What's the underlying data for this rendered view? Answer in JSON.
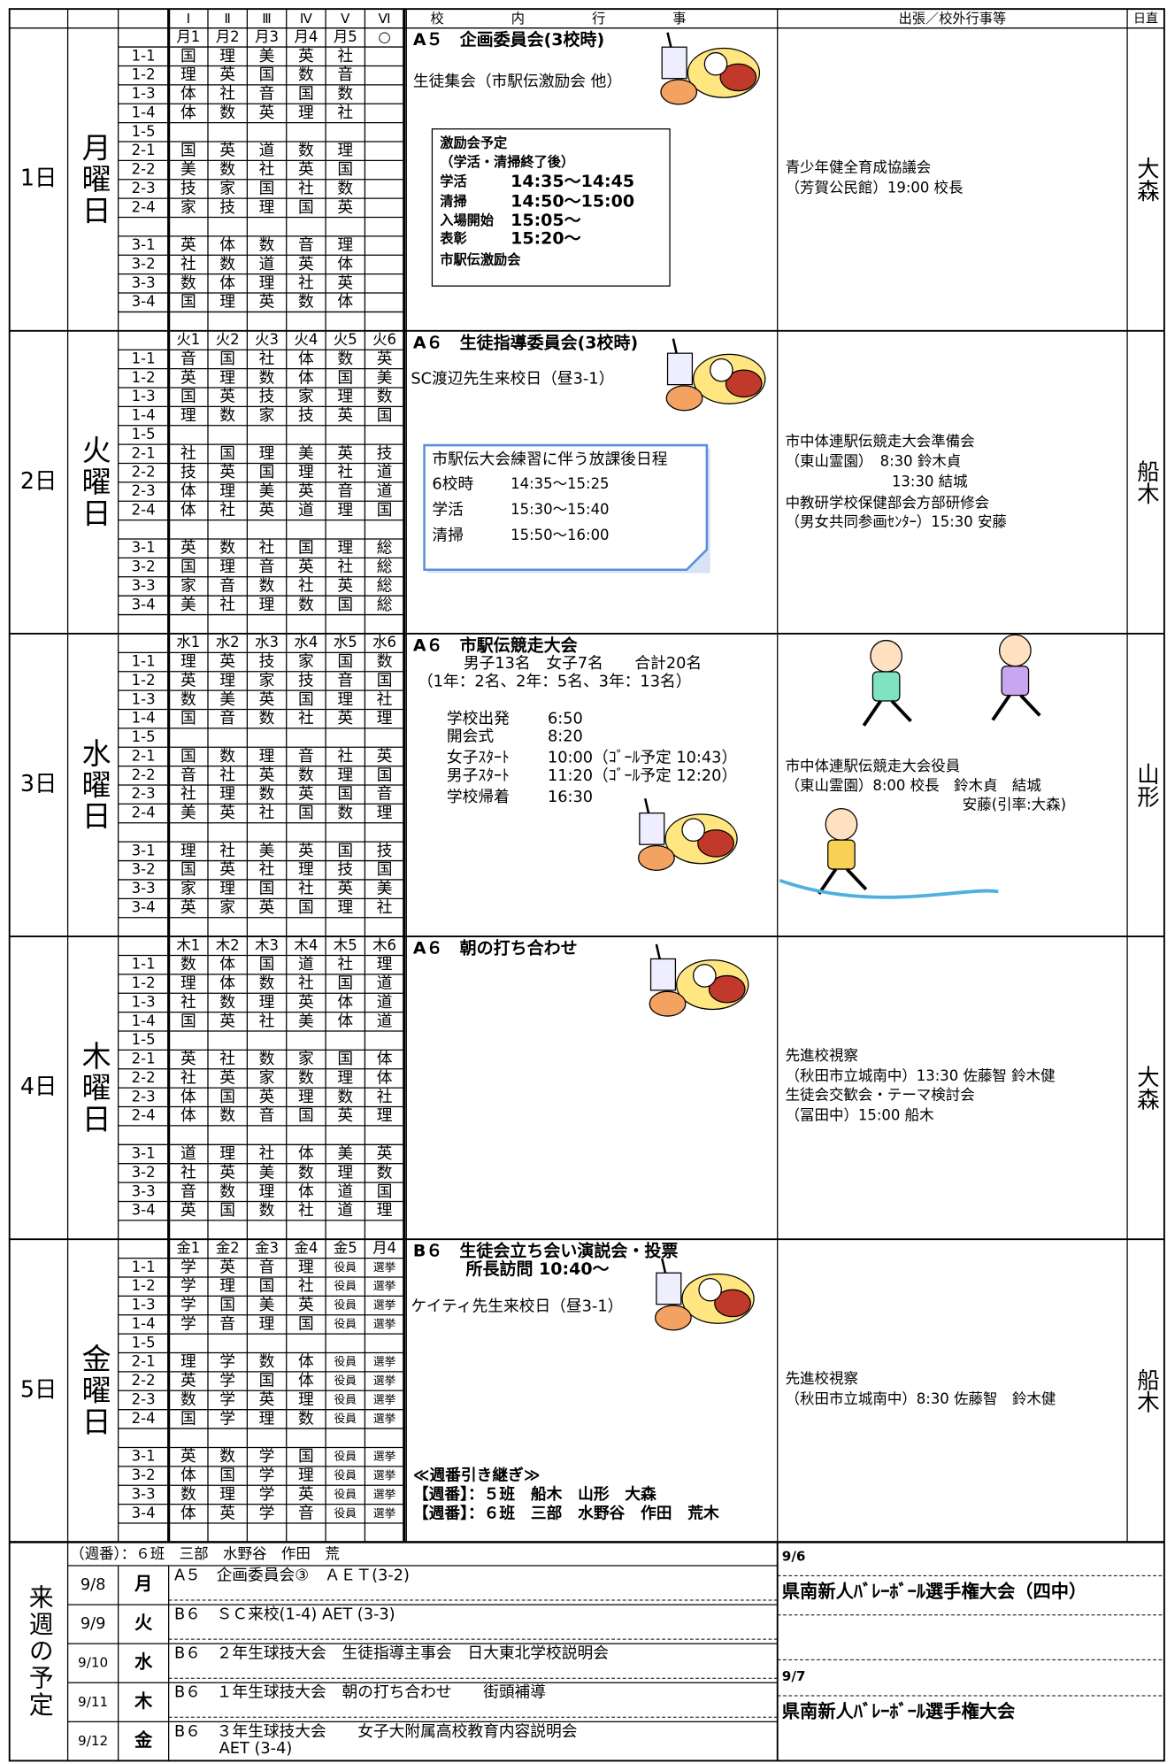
{
  "header": {
    "periods": [
      "Ⅰ",
      "Ⅱ",
      "Ⅲ",
      "Ⅳ",
      "Ⅴ",
      "Ⅵ"
    ],
    "events": "校内行事",
    "outside": "出張／校外行事等",
    "duty": "日直"
  },
  "classes": [
    "1-1",
    "1-2",
    "1-3",
    "1-4",
    "1-5",
    "2-1",
    "2-2",
    "2-3",
    "2-4",
    "3-1",
    "3-2",
    "3-3",
    "3-4"
  ],
  "days": [
    {
      "date": "1日",
      "weekday": "月曜日",
      "duty": "大森",
      "periods": [
        "月1",
        "月2",
        "月3",
        "月4",
        "月5",
        "○"
      ],
      "timetable": [
        [
          "国",
          "理",
          "美",
          "英",
          "社"
        ],
        [
          "理",
          "英",
          "国",
          "数",
          "音"
        ],
        [
          "体",
          "社",
          "音",
          "国",
          "数"
        ],
        [
          "体",
          "数",
          "英",
          "理",
          "社"
        ],
        [],
        [
          "国",
          "英",
          "道",
          "数",
          "理"
        ],
        [
          "美",
          "数",
          "社",
          "英",
          "国"
        ],
        [
          "技",
          "家",
          "国",
          "社",
          "数"
        ],
        [
          "家",
          "技",
          "理",
          "国",
          "英"
        ],
        [
          "英",
          "体",
          "数",
          "音",
          "理"
        ],
        [
          "社",
          "数",
          "道",
          "英",
          "体"
        ],
        [
          "数",
          "体",
          "理",
          "社",
          "英"
        ],
        [
          "国",
          "理",
          "英",
          "数",
          "体"
        ]
      ],
      "events": {
        "title": "A５　企画委員会(3校時)",
        "lines": [
          "生徒集会（市駅伝激励会 他）"
        ],
        "box": [
          [
            "激励会予定"
          ],
          [
            "（学活・清掃終了後）"
          ],
          [
            "学活",
            "14:35～14:45"
          ],
          [
            "清掃",
            "14:50～15:00"
          ],
          [
            "入場開始",
            "15:05～"
          ],
          [
            "表彰",
            "15:20～"
          ],
          [
            "市駅伝激励会"
          ]
        ]
      },
      "outside": [
        "青少年健全育成協議会",
        "（芳賀公民館）19:00 校長"
      ]
    },
    {
      "date": "2日",
      "weekday": "火曜日",
      "duty": "船木",
      "periods": [
        "火1",
        "火2",
        "火3",
        "火4",
        "火5",
        "火6"
      ],
      "timetable": [
        [
          "音",
          "国",
          "社",
          "体",
          "数",
          "英"
        ],
        [
          "英",
          "理",
          "数",
          "体",
          "国",
          "美"
        ],
        [
          "国",
          "英",
          "技",
          "家",
          "理",
          "数"
        ],
        [
          "理",
          "数",
          "家",
          "技",
          "英",
          "国"
        ],
        [],
        [
          "社",
          "国",
          "理",
          "美",
          "英",
          "技"
        ],
        [
          "技",
          "英",
          "国",
          "理",
          "社",
          "道"
        ],
        [
          "体",
          "理",
          "美",
          "英",
          "音",
          "道"
        ],
        [
          "体",
          "社",
          "英",
          "道",
          "理",
          "国"
        ],
        [
          "英",
          "数",
          "社",
          "国",
          "理",
          "総"
        ],
        [
          "国",
          "理",
          "音",
          "英",
          "社",
          "総"
        ],
        [
          "家",
          "音",
          "数",
          "社",
          "英",
          "総"
        ],
        [
          "美",
          "社",
          "理",
          "数",
          "国",
          "総"
        ]
      ],
      "events": {
        "title": "A６　生徒指導委員会(3校時)",
        "lines": [
          "SC渡辺先生来校日（昼3-1）"
        ],
        "box": [
          [
            "市駅伝大会練習に伴う放課後日程"
          ],
          [
            "6校時",
            "14:35～15:25"
          ],
          [
            "学活",
            "15:30～15:40"
          ],
          [
            "清掃",
            "15:50～16:00"
          ]
        ]
      },
      "outside": [
        "市中体連駅伝競走大会準備会",
        "（東山霊園）　8:30 鈴木貞",
        "13:30 結城",
        "中教研学校保健部会方部研修会",
        "（男女共同参画ｾﾝﾀｰ）15:30 安藤"
      ]
    },
    {
      "date": "3日",
      "weekday": "水曜日",
      "duty": "山形",
      "periods": [
        "水1",
        "水2",
        "水3",
        "水4",
        "水5",
        "水6"
      ],
      "timetable": [
        [
          "理",
          "英",
          "技",
          "家",
          "国",
          "数"
        ],
        [
          "英",
          "理",
          "家",
          "技",
          "音",
          "国"
        ],
        [
          "数",
          "美",
          "英",
          "国",
          "理",
          "社"
        ],
        [
          "国",
          "音",
          "数",
          "社",
          "英",
          "理"
        ],
        [],
        [
          "国",
          "数",
          "理",
          "音",
          "社",
          "英"
        ],
        [
          "音",
          "社",
          "英",
          "数",
          "理",
          "国"
        ],
        [
          "社",
          "理",
          "数",
          "英",
          "国",
          "音"
        ],
        [
          "美",
          "英",
          "社",
          "国",
          "数",
          "理"
        ],
        [
          "理",
          "社",
          "美",
          "英",
          "国",
          "技"
        ],
        [
          "国",
          "英",
          "社",
          "理",
          "技",
          "国"
        ],
        [
          "家",
          "理",
          "国",
          "社",
          "英",
          "美"
        ],
        [
          "英",
          "家",
          "英",
          "国",
          "理",
          "社"
        ]
      ],
      "events": {
        "title": "A６　市駅伝競走大会",
        "lines": [
          "男子13名　女子7名　　合計20名",
          "（1年：2名、2年：5名、3年：13名）"
        ],
        "schedule": [
          [
            "学校出発",
            "6:50"
          ],
          [
            "開会式",
            "8:20"
          ],
          [
            "女子ｽﾀｰﾄ",
            "10:00（ｺﾞｰﾙ予定 10:43）"
          ],
          [
            "男子ｽﾀｰﾄ",
            "11:20（ｺﾞｰﾙ予定 12:20）"
          ],
          [
            "学校帰着",
            "16:30"
          ]
        ]
      },
      "outside": [
        "市中体連駅伝競走大会役員",
        "（東山霊園）8:00 校長　鈴木貞　結城",
        "安藤(引率:大森)"
      ]
    },
    {
      "date": "4日",
      "weekday": "木曜日",
      "duty": "大森",
      "periods": [
        "木1",
        "木2",
        "木3",
        "木4",
        "木5",
        "木6"
      ],
      "timetable": [
        [
          "数",
          "体",
          "国",
          "道",
          "社",
          "理"
        ],
        [
          "理",
          "体",
          "数",
          "社",
          "国",
          "道"
        ],
        [
          "社",
          "数",
          "理",
          "英",
          "体",
          "道"
        ],
        [
          "国",
          "英",
          "社",
          "美",
          "体",
          "道"
        ],
        [],
        [
          "英",
          "社",
          "数",
          "家",
          "国",
          "体"
        ],
        [
          "社",
          "英",
          "家",
          "数",
          "理",
          "体"
        ],
        [
          "体",
          "国",
          "英",
          "理",
          "数",
          "社"
        ],
        [
          "体",
          "数",
          "音",
          "国",
          "英",
          "理"
        ],
        [
          "道",
          "理",
          "社",
          "体",
          "美",
          "英"
        ],
        [
          "社",
          "英",
          "美",
          "数",
          "理",
          "数"
        ],
        [
          "音",
          "数",
          "理",
          "体",
          "道",
          "国"
        ],
        [
          "英",
          "国",
          "数",
          "社",
          "道",
          "理"
        ]
      ],
      "events": {
        "title": "A６　朝の打ち合わせ",
        "lines": []
      },
      "outside": [
        "先進校視察",
        "（秋田市立城南中）13:30 佐藤智 鈴木健",
        "生徒会交歓会・テーマ検討会",
        "（冨田中）15:00 船木"
      ]
    },
    {
      "date": "5日",
      "weekday": "金曜日",
      "duty": "船木",
      "periods": [
        "金1",
        "金2",
        "金3",
        "金4",
        "金5",
        "月4"
      ],
      "timetable": [
        [
          "学",
          "英",
          "音",
          "理",
          "役員",
          "選挙"
        ],
        [
          "学",
          "理",
          "国",
          "社",
          "役員",
          "選挙"
        ],
        [
          "学",
          "国",
          "美",
          "英",
          "役員",
          "選挙"
        ],
        [
          "学",
          "音",
          "理",
          "国",
          "役員",
          "選挙"
        ],
        [],
        [
          "理",
          "学",
          "数",
          "体",
          "役員",
          "選挙"
        ],
        [
          "英",
          "学",
          "国",
          "体",
          "役員",
          "選挙"
        ],
        [
          "数",
          "学",
          "英",
          "理",
          "役員",
          "選挙"
        ],
        [
          "国",
          "学",
          "理",
          "数",
          "役員",
          "選挙"
        ],
        [
          "英",
          "数",
          "学",
          "国",
          "役員",
          "選挙"
        ],
        [
          "体",
          "国",
          "学",
          "理",
          "役員",
          "選挙"
        ],
        [
          "数",
          "理",
          "学",
          "英",
          "役員",
          "選挙"
        ],
        [
          "体",
          "英",
          "学",
          "音",
          "役員",
          "選挙"
        ]
      ],
      "events": {
        "title": "B６　生徒会立ち会い演説会・投票",
        "lines": [
          "所長訪問 10:40～",
          "ケイティ先生来校日（昼3-1）"
        ],
        "handover": [
          "≪週番引き継ぎ≫",
          "【週番】：５班　船木　山形　大森",
          "【週番】：６班　三部　水野谷　作田　荒木"
        ]
      },
      "outside": [
        "先進校視察",
        "（秋田市立城南中）8:30 佐藤智　鈴木健"
      ]
    }
  ],
  "next_week": {
    "label": "来週の予定",
    "duty_note": "（週番）：６班　三部　水野谷　作田　荒",
    "rows": [
      {
        "date": "9/8",
        "day": "月",
        "lines": [
          "A５　企画委員会③　ＡＥＴ(3-2)"
        ]
      },
      {
        "date": "9/9",
        "day": "火",
        "lines": [
          "B６　ＳＣ来校(1-4) AET (3-3)"
        ]
      },
      {
        "date": "9/10",
        "day": "水",
        "lines": [
          "B６　２年生球技大会　生徒指導主事会　日大東北学校説明会"
        ]
      },
      {
        "date": "9/11",
        "day": "木",
        "lines": [
          "B６　１年生球技大会　朝の打ち合わせ　　街頭補導"
        ]
      },
      {
        "date": "9/12",
        "day": "金",
        "lines": [
          "B６　３年生球技大会　　女子大附属高校教育内容説明会",
          "AET (3-4)"
        ]
      }
    ],
    "outside": [
      {
        "date": "9/6",
        "event": "県南新人ﾊﾞﾚｰﾎﾞｰﾙ選手権大会（四中）"
      },
      {
        "date": "9/7",
        "event": "県南新人ﾊﾞﾚｰﾎﾞｰﾙ選手権大会"
      }
    ]
  }
}
